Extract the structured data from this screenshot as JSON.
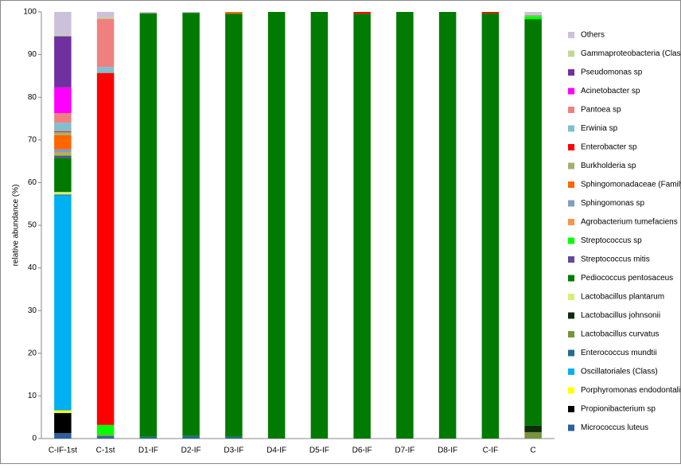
{
  "chart_data": {
    "type": "stacked-bar",
    "y_label": "relative abundance (%)",
    "categories": [
      "C-IF-1st",
      "C-1st",
      "D1-IF",
      "D2-IF",
      "D3-IF",
      "D4-IF",
      "D5-IF",
      "D6-IF",
      "D7-IF",
      "D8-IF",
      "C-IF",
      "C"
    ],
    "ylim": [
      0,
      100
    ],
    "yticks": [
      0,
      10,
      20,
      30,
      40,
      50,
      60,
      70,
      80,
      90,
      100
    ],
    "grid": false,
    "series": [
      {
        "name": "Micrococcus luteus",
        "color": "#2e5f99",
        "values": [
          1.3,
          0.3,
          0,
          0,
          0,
          0,
          0,
          0,
          0,
          0,
          0,
          0
        ]
      },
      {
        "name": "Propionibacterium sp",
        "color": "#000000",
        "values": [
          4.7,
          0,
          0,
          0,
          0,
          0,
          0,
          0,
          0,
          0,
          0,
          0
        ]
      },
      {
        "name": "Porphyromonas endodontalis",
        "color": "#ffff00",
        "values": [
          0.6,
          0,
          0,
          0,
          0,
          0,
          0,
          0,
          0,
          0,
          0,
          0
        ]
      },
      {
        "name": "Oscillatoriales (Class)",
        "color": "#00b0f0",
        "values": [
          50.4,
          0,
          0,
          0,
          0,
          0,
          0,
          0,
          0,
          0,
          0,
          0
        ]
      },
      {
        "name": "Enterococcus mundtii",
        "color": "#1f6e8c",
        "values": [
          0.2,
          0.3,
          0.4,
          0.6,
          0.4,
          0,
          0,
          0,
          0,
          0,
          0,
          0
        ]
      },
      {
        "name": "Lactobacillus curvatus",
        "color": "#77933c",
        "values": [
          0,
          0.3,
          0,
          0,
          0,
          0,
          0,
          0,
          0,
          0,
          0,
          1.5
        ]
      },
      {
        "name": "Lactobacillus johnsonii",
        "color": "#0d2d0d",
        "values": [
          0,
          0,
          0,
          0,
          0,
          0,
          0,
          0,
          0,
          0,
          0,
          1.5
        ]
      },
      {
        "name": "Lactobacillus plantarum",
        "color": "#d4f07a",
        "values": [
          0.6,
          0,
          0,
          0,
          0,
          0,
          0,
          0,
          0,
          0,
          0,
          0
        ]
      },
      {
        "name": "Pediococcus pentosaceus",
        "color": "#007a00",
        "values": [
          8,
          0,
          99.3,
          99.2,
          99.2,
          100,
          100,
          99.6,
          100,
          100,
          99.7,
          95.3
        ]
      },
      {
        "name": "Streptococcus mitis",
        "color": "#604a9b",
        "values": [
          0.5,
          0,
          0,
          0,
          0,
          0,
          0,
          0,
          0,
          0,
          0,
          0
        ]
      },
      {
        "name": "Streptococcus sp",
        "color": "#00ff00",
        "values": [
          0.2,
          2.3,
          0,
          0,
          0,
          0,
          0,
          0,
          0,
          0,
          0,
          0.7
        ]
      },
      {
        "name": "Agrobacterium tumefaciens",
        "color": "#f79646",
        "values": [
          0.5,
          0,
          0,
          0,
          0,
          0,
          0,
          0,
          0,
          0,
          0,
          0
        ]
      },
      {
        "name": "Sphingomonas sp",
        "color": "#7f9fbf",
        "values": [
          0.8,
          0,
          0,
          0,
          0,
          0,
          0,
          0,
          0,
          0,
          0,
          0
        ]
      },
      {
        "name": "Sphingomonadaceae (Family)",
        "color": "#ff6600",
        "values": [
          3.3,
          0,
          0,
          0,
          0.4,
          0,
          0,
          0,
          0,
          0,
          0,
          0
        ]
      },
      {
        "name": "Burkholderia sp",
        "color": "#a0b070",
        "values": [
          0.7,
          0,
          0,
          0,
          0,
          0,
          0,
          0,
          0,
          0,
          0,
          0.3
        ]
      },
      {
        "name": "Enterobacter sp",
        "color": "#ff0000",
        "values": [
          0.2,
          82.5,
          0,
          0,
          0,
          0,
          0,
          0.4,
          0,
          0,
          0.3,
          0
        ]
      },
      {
        "name": "Erwinia sp",
        "color": "#7fbfcf",
        "values": [
          2,
          1.4,
          0,
          0,
          0,
          0,
          0,
          0,
          0,
          0,
          0,
          0
        ]
      },
      {
        "name": "Pantoea sp",
        "color": "#f08080",
        "values": [
          2.3,
          11.3,
          0,
          0,
          0,
          0,
          0,
          0,
          0,
          0,
          0,
          0
        ]
      },
      {
        "name": "Acinetobacter sp",
        "color": "#ff00ff",
        "values": [
          6,
          0,
          0,
          0,
          0,
          0,
          0,
          0,
          0,
          0,
          0,
          0
        ]
      },
      {
        "name": "Pseudomonas sp",
        "color": "#7030a0",
        "values": [
          12,
          0,
          0,
          0,
          0,
          0,
          0,
          0,
          0,
          0,
          0,
          0
        ]
      },
      {
        "name": "Gammaproteobacteria (Class)",
        "color": "#c4d79b",
        "values": [
          0.3,
          0.4,
          0,
          0,
          0,
          0,
          0,
          0,
          0,
          0,
          0,
          0
        ]
      },
      {
        "name": "Others",
        "color": "#ccc0da",
        "values": [
          5.4,
          1.2,
          0.3,
          0.2,
          0,
          0,
          0,
          0,
          0,
          0,
          0,
          0.7
        ]
      }
    ]
  }
}
